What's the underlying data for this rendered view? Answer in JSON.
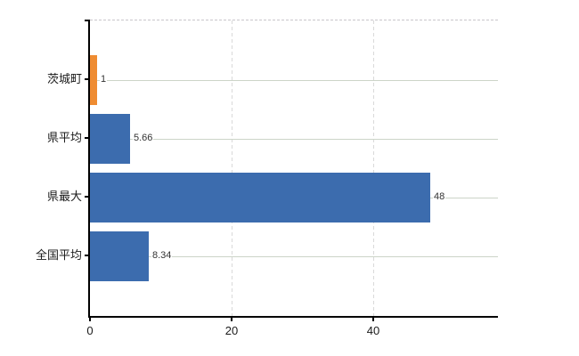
{
  "chart_data": {
    "type": "bar",
    "orientation": "horizontal",
    "title": "",
    "xlabel": "",
    "ylabel": "",
    "categories": [
      "茨城町",
      "県平均",
      "県最大",
      "全国平均"
    ],
    "values": [
      1,
      5.66,
      48,
      8.34
    ],
    "value_labels": [
      "1",
      "5.66",
      "48",
      "8.34"
    ],
    "bar_colors": [
      "#ef8c32",
      "#3c6cae",
      "#3c6cae",
      "#3c6cae"
    ],
    "x_ticks": [
      "0",
      "20",
      "40"
    ],
    "x_tick_values": [
      0,
      20,
      40
    ],
    "xlim": [
      0,
      57.6
    ],
    "grid": true,
    "legend": false,
    "colors": {
      "bar_blue": "#3c6cae",
      "bar_orange": "#ef8c32",
      "axis": "#000000",
      "hgrid": "#ccd4c8",
      "vgrid": "#d9d9d9",
      "top_border": "#c9c6cb",
      "category_label": "#1a1a1a",
      "value_label": "#333333",
      "background": "#ffffff"
    }
  }
}
